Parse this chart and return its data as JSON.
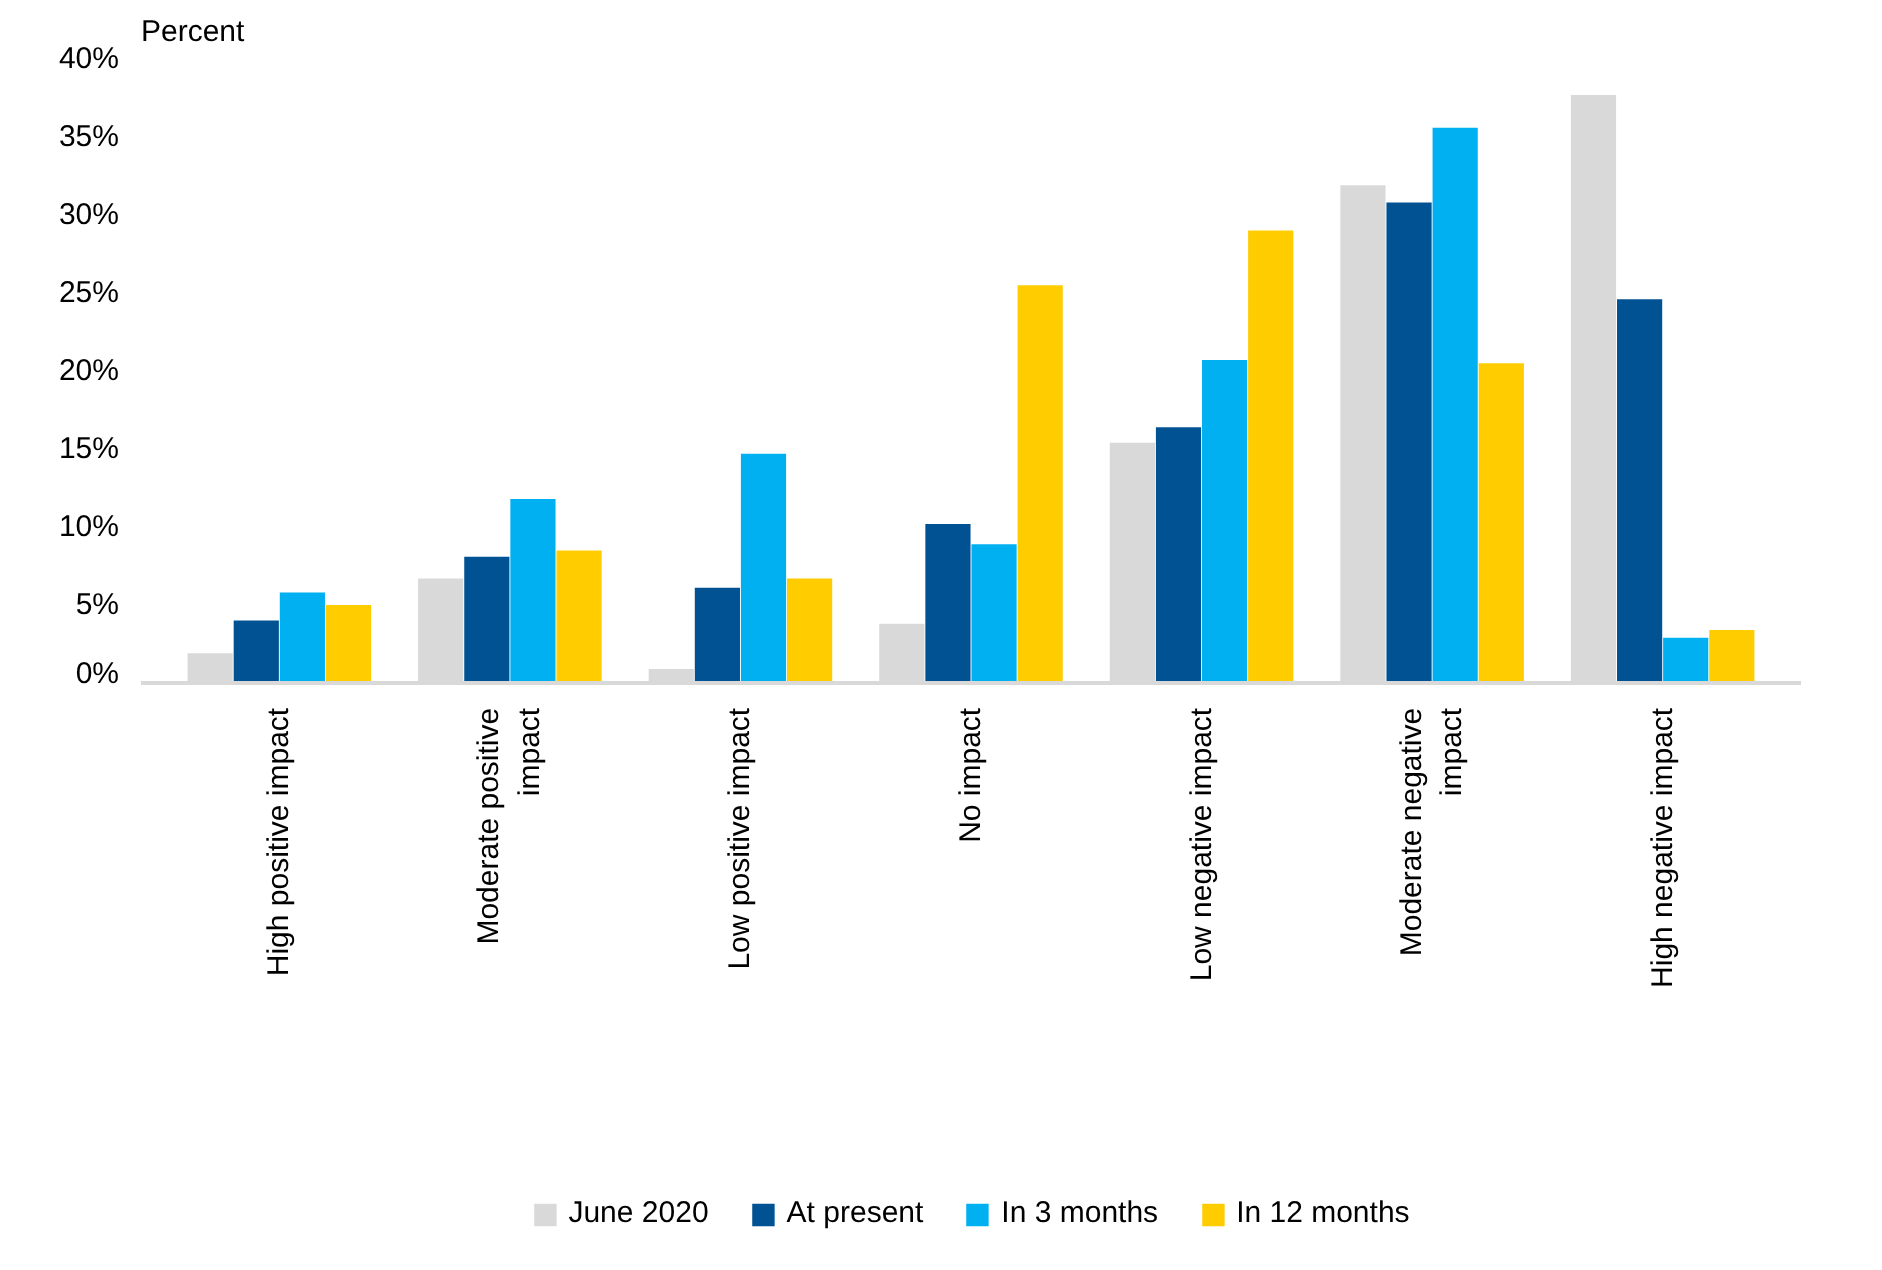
{
  "chart_data": {
    "type": "bar",
    "ylabel": "Percent",
    "categories": [
      "High positive impact",
      "Moderate positive impact",
      "Low positive impact",
      "No impact",
      "Low negative impact",
      "Moderate negative impact",
      "High negative impact"
    ],
    "series": [
      {
        "name": "June 2020",
        "color": "#d9d9d9",
        "values": [
          1.9,
          6.7,
          0.9,
          3.8,
          15.4,
          31.9,
          37.7
        ]
      },
      {
        "name": "At present",
        "color": "#005293",
        "values": [
          4.0,
          8.1,
          6.1,
          10.2,
          16.4,
          30.8,
          24.6
        ]
      },
      {
        "name": "In 3 months",
        "color": "#00b0f0",
        "values": [
          5.8,
          11.8,
          14.7,
          8.9,
          20.7,
          35.6,
          2.9
        ]
      },
      {
        "name": "In 12 months",
        "color": "#ffcc00",
        "values": [
          5.0,
          8.5,
          6.7,
          25.5,
          29.0,
          20.5,
          3.4
        ]
      }
    ],
    "ylim": [
      0,
      40
    ],
    "yticks": [
      {
        "value": 0,
        "label": "0%"
      },
      {
        "value": 5,
        "label": "5%"
      },
      {
        "value": 10,
        "label": "10%"
      },
      {
        "value": 15,
        "label": "15%"
      },
      {
        "value": 20,
        "label": "20%"
      },
      {
        "value": 25,
        "label": "25%"
      },
      {
        "value": 30,
        "label": "30%"
      },
      {
        "value": 35,
        "label": "35%"
      },
      {
        "value": 40,
        "label": "40%"
      }
    ],
    "grid": false,
    "legend": "bottom"
  }
}
